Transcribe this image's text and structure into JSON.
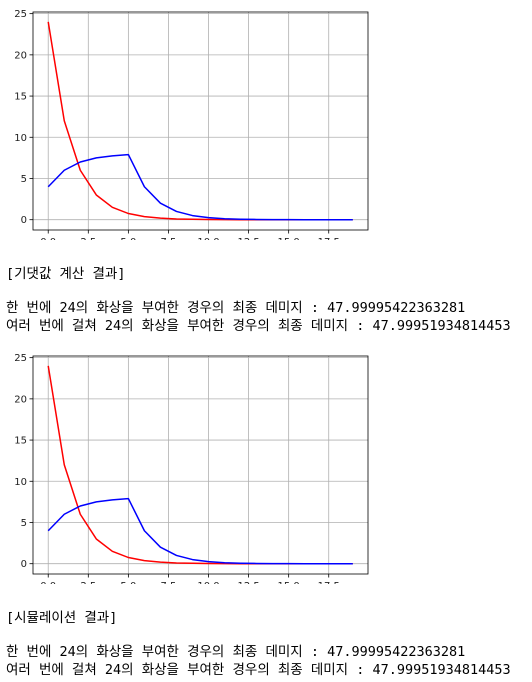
{
  "chart_data": [
    {
      "type": "line",
      "x": [
        0,
        1,
        2,
        3,
        4,
        5,
        6,
        7,
        8,
        9,
        10,
        11,
        12,
        13,
        14,
        15,
        16,
        17,
        18,
        19
      ],
      "series": [
        {
          "color": "#ff0000",
          "values": [
            24,
            12,
            6,
            3,
            1.5,
            0.75,
            0.375,
            0.19,
            0.09,
            0.05,
            0.02,
            0.01,
            0,
            0,
            0,
            0,
            0,
            0,
            0,
            0
          ]
        },
        {
          "color": "#0000ff",
          "values": [
            4,
            6,
            7,
            7.5,
            7.75,
            7.9,
            4,
            2,
            1,
            0.5,
            0.25,
            0.12,
            0.06,
            0.03,
            0.015,
            0.01,
            0,
            0,
            0,
            0
          ]
        }
      ],
      "xlim": [
        -0.95,
        19.95
      ],
      "ylim": [
        -1.25,
        25.2
      ],
      "xticks": [
        0,
        2.5,
        5,
        7.5,
        10,
        12.5,
        15,
        17.5
      ],
      "xtick_labels": [
        "0.0",
        "2.5",
        "5.0",
        "7.5",
        "10.0",
        "12.5",
        "15.0",
        "17.5"
      ],
      "yticks": [
        0,
        5,
        10,
        15,
        20,
        25
      ],
      "ytick_labels": [
        "0",
        "5",
        "10",
        "15",
        "20",
        "25"
      ],
      "grid": true,
      "title": "",
      "xlabel": "",
      "ylabel": ""
    },
    {
      "type": "line",
      "x": [
        0,
        1,
        2,
        3,
        4,
        5,
        6,
        7,
        8,
        9,
        10,
        11,
        12,
        13,
        14,
        15,
        16,
        17,
        18,
        19
      ],
      "series": [
        {
          "color": "#ff0000",
          "values": [
            24,
            12,
            6,
            3,
            1.5,
            0.75,
            0.375,
            0.19,
            0.09,
            0.05,
            0.02,
            0.01,
            0,
            0,
            0,
            0,
            0,
            0,
            0,
            0
          ]
        },
        {
          "color": "#0000ff",
          "values": [
            4,
            6,
            7,
            7.5,
            7.75,
            7.9,
            4,
            2,
            1,
            0.5,
            0.25,
            0.12,
            0.06,
            0.03,
            0.015,
            0.01,
            0,
            0,
            0,
            0
          ]
        }
      ],
      "xlim": [
        -0.95,
        19.95
      ],
      "ylim": [
        -1.25,
        25.2
      ],
      "xticks": [
        0,
        2.5,
        5,
        7.5,
        10,
        12.5,
        15,
        17.5
      ],
      "xtick_labels": [
        "0.0",
        "2.5",
        "5.0",
        "7.5",
        "10.0",
        "12.5",
        "15.0",
        "17.5"
      ],
      "yticks": [
        0,
        5,
        10,
        15,
        20,
        25
      ],
      "ytick_labels": [
        "0",
        "5",
        "10",
        "15",
        "20",
        "25"
      ],
      "grid": true,
      "title": "",
      "xlabel": "",
      "ylabel": ""
    }
  ],
  "sections": [
    {
      "heading": "[기댓값 계산 결과]",
      "line1": "한 번에 24의 화상을 부여한 경우의 최종 데미지 : 47.99995422363281",
      "line2": "여러 번에 걸쳐 24의 화상을 부여한 경우의 최종 데미지 : 47.99951934814453"
    },
    {
      "heading": "[시뮬레이션 결과]",
      "line1": "한 번에 24의 화상을 부여한 경우의 최종 데미지 : 47.99995422363281",
      "line2": "여러 번에 걸쳐 24의 화상을 부여한 경우의 최종 데미지 : 47.99951934814453"
    }
  ]
}
